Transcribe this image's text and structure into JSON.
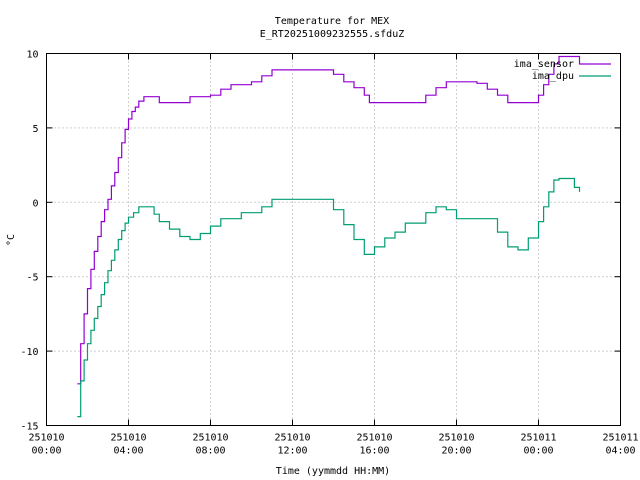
{
  "chart_data": {
    "type": "line",
    "title": "Temperature for MEX",
    "subtitle": "E_RT20251009232555.sfduZ",
    "xlabel": "Time (yymmdd HH:MM)",
    "ylabel": "°C",
    "ylim": [
      -15,
      10
    ],
    "xlim": [
      "251010 00:00",
      "251011 04:00"
    ],
    "grid": true,
    "legend_position": "top-right",
    "x_ticks": [
      {
        "date": "251010",
        "time": "00:00"
      },
      {
        "date": "251010",
        "time": "04:00"
      },
      {
        "date": "251010",
        "time": "08:00"
      },
      {
        "date": "251010",
        "time": "12:00"
      },
      {
        "date": "251010",
        "time": "16:00"
      },
      {
        "date": "251010",
        "time": "20:00"
      },
      {
        "date": "251011",
        "time": "00:00"
      },
      {
        "date": "251011",
        "time": "04:00"
      }
    ],
    "y_ticks": [
      "10",
      "5",
      "0",
      "-5",
      "-10",
      "-15"
    ],
    "series": [
      {
        "name": "ima_sensor",
        "color": "#9400d3",
        "points": [
          [
            "251010 01:30",
            -12.2
          ],
          [
            "251010 01:40",
            -9.5
          ],
          [
            "251010 01:50",
            -7.5
          ],
          [
            "251010 02:00",
            -5.8
          ],
          [
            "251010 02:10",
            -4.5
          ],
          [
            "251010 02:20",
            -3.3
          ],
          [
            "251010 02:30",
            -2.3
          ],
          [
            "251010 02:40",
            -1.3
          ],
          [
            "251010 02:50",
            -0.5
          ],
          [
            "251010 03:00",
            0.2
          ],
          [
            "251010 03:10",
            1.1
          ],
          [
            "251010 03:20",
            2.0
          ],
          [
            "251010 03:30",
            3.0
          ],
          [
            "251010 03:40",
            4.0
          ],
          [
            "251010 03:50",
            4.9
          ],
          [
            "251010 04:00",
            5.6
          ],
          [
            "251010 04:10",
            6.1
          ],
          [
            "251010 04:20",
            6.4
          ],
          [
            "251010 04:30",
            6.8
          ],
          [
            "251010 04:45",
            7.1
          ],
          [
            "251010 05:15",
            7.1
          ],
          [
            "251010 05:30",
            6.7
          ],
          [
            "251010 06:30",
            6.7
          ],
          [
            "251010 07:00",
            7.1
          ],
          [
            "251010 08:00",
            7.2
          ],
          [
            "251010 08:30",
            7.6
          ],
          [
            "251010 09:00",
            7.9
          ],
          [
            "251010 10:00",
            8.1
          ],
          [
            "251010 10:30",
            8.5
          ],
          [
            "251010 11:00",
            8.9
          ],
          [
            "251010 12:00",
            8.9
          ],
          [
            "251010 13:00",
            8.9
          ],
          [
            "251010 14:00",
            8.6
          ],
          [
            "251010 14:30",
            8.1
          ],
          [
            "251010 15:00",
            7.7
          ],
          [
            "251010 15:30",
            7.2
          ],
          [
            "251010 15:45",
            6.7
          ],
          [
            "251010 17:00",
            6.7
          ],
          [
            "251010 18:00",
            6.7
          ],
          [
            "251010 18:30",
            7.2
          ],
          [
            "251010 19:00",
            7.7
          ],
          [
            "251010 19:30",
            8.1
          ],
          [
            "251010 20:00",
            8.1
          ],
          [
            "251010 21:00",
            8.0
          ],
          [
            "251010 21:30",
            7.6
          ],
          [
            "251010 22:00",
            7.2
          ],
          [
            "251010 22:30",
            6.7
          ],
          [
            "251010 23:30",
            6.7
          ],
          [
            "251011 00:00",
            7.2
          ],
          [
            "251011 00:15",
            7.9
          ],
          [
            "251011 00:30",
            8.6
          ],
          [
            "251011 00:45",
            9.3
          ],
          [
            "251011 01:00",
            9.8
          ],
          [
            "251011 01:45",
            9.8
          ],
          [
            "251011 02:00",
            9.3
          ]
        ]
      },
      {
        "name": "ima_dpu",
        "color": "#009e73",
        "points": [
          [
            "251010 01:30",
            -14.4
          ],
          [
            "251010 01:40",
            -12.0
          ],
          [
            "251010 01:50",
            -10.6
          ],
          [
            "251010 02:00",
            -9.5
          ],
          [
            "251010 02:10",
            -8.6
          ],
          [
            "251010 02:20",
            -7.8
          ],
          [
            "251010 02:30",
            -7.0
          ],
          [
            "251010 02:40",
            -6.2
          ],
          [
            "251010 02:50",
            -5.4
          ],
          [
            "251010 03:00",
            -4.6
          ],
          [
            "251010 03:10",
            -3.9
          ],
          [
            "251010 03:20",
            -3.2
          ],
          [
            "251010 03:30",
            -2.5
          ],
          [
            "251010 03:40",
            -1.9
          ],
          [
            "251010 03:50",
            -1.4
          ],
          [
            "251010 04:00",
            -1.0
          ],
          [
            "251010 04:15",
            -0.7
          ],
          [
            "251010 04:30",
            -0.3
          ],
          [
            "251010 05:00",
            -0.3
          ],
          [
            "251010 05:15",
            -0.8
          ],
          [
            "251010 05:30",
            -1.3
          ],
          [
            "251010 06:00",
            -1.8
          ],
          [
            "251010 06:30",
            -2.3
          ],
          [
            "251010 07:00",
            -2.5
          ],
          [
            "251010 07:30",
            -2.1
          ],
          [
            "251010 08:00",
            -1.6
          ],
          [
            "251010 08:30",
            -1.1
          ],
          [
            "251010 09:30",
            -0.7
          ],
          [
            "251010 10:30",
            -0.3
          ],
          [
            "251010 11:00",
            0.2
          ],
          [
            "251010 12:00",
            0.2
          ],
          [
            "251010 13:00",
            0.2
          ],
          [
            "251010 13:30",
            0.2
          ],
          [
            "251010 14:00",
            -0.5
          ],
          [
            "251010 14:30",
            -1.5
          ],
          [
            "251010 15:00",
            -2.5
          ],
          [
            "251010 15:30",
            -3.5
          ],
          [
            "251010 16:00",
            -3.0
          ],
          [
            "251010 16:30",
            -2.4
          ],
          [
            "251010 17:00",
            -2.0
          ],
          [
            "251010 17:30",
            -1.4
          ],
          [
            "251010 18:30",
            -0.7
          ],
          [
            "251010 19:00",
            -0.3
          ],
          [
            "251010 19:30",
            -0.5
          ],
          [
            "251010 20:00",
            -1.1
          ],
          [
            "251010 21:30",
            -1.1
          ],
          [
            "251010 22:00",
            -2.0
          ],
          [
            "251010 22:30",
            -3.0
          ],
          [
            "251010 23:00",
            -3.2
          ],
          [
            "251010 23:30",
            -2.4
          ],
          [
            "251011 00:00",
            -1.3
          ],
          [
            "251011 00:15",
            -0.3
          ],
          [
            "251011 00:30",
            0.7
          ],
          [
            "251011 00:45",
            1.5
          ],
          [
            "251011 01:00",
            1.6
          ],
          [
            "251011 01:30",
            1.6
          ],
          [
            "251011 01:45",
            1.0
          ],
          [
            "251011 02:00",
            0.7
          ]
        ]
      }
    ]
  }
}
